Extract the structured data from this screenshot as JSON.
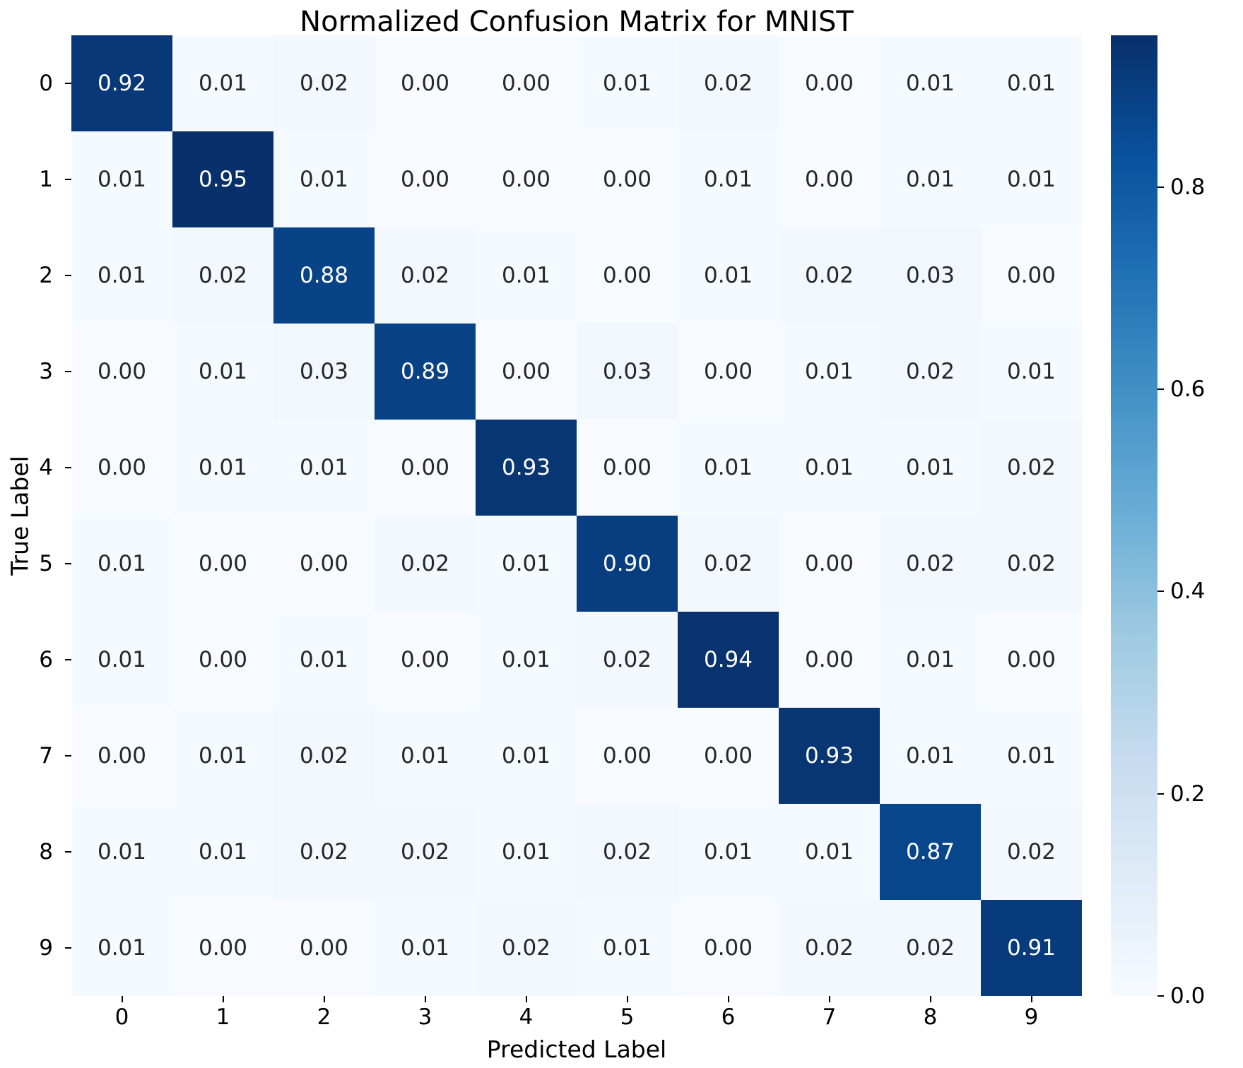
{
  "chart_data": {
    "type": "heatmap",
    "title": "Normalized Confusion Matrix for MNIST",
    "xlabel": "Predicted Label",
    "ylabel": "True Label",
    "x_ticklabels": [
      "0",
      "1",
      "2",
      "3",
      "4",
      "5",
      "6",
      "7",
      "8",
      "9"
    ],
    "y_ticklabels": [
      "0",
      "1",
      "2",
      "3",
      "4",
      "5",
      "6",
      "7",
      "8",
      "9"
    ],
    "matrix": [
      [
        0.92,
        0.01,
        0.02,
        0.0,
        0.0,
        0.01,
        0.02,
        0.0,
        0.01,
        0.01
      ],
      [
        0.01,
        0.95,
        0.01,
        0.0,
        0.0,
        0.0,
        0.01,
        0.0,
        0.01,
        0.01
      ],
      [
        0.01,
        0.02,
        0.88,
        0.02,
        0.01,
        0.0,
        0.01,
        0.02,
        0.03,
        0.0
      ],
      [
        0.0,
        0.01,
        0.03,
        0.89,
        0.0,
        0.03,
        0.0,
        0.01,
        0.02,
        0.01
      ],
      [
        0.0,
        0.01,
        0.01,
        0.0,
        0.93,
        0.0,
        0.01,
        0.01,
        0.01,
        0.02
      ],
      [
        0.01,
        0.0,
        0.0,
        0.02,
        0.01,
        0.9,
        0.02,
        0.0,
        0.02,
        0.02
      ],
      [
        0.01,
        0.0,
        0.01,
        0.0,
        0.01,
        0.02,
        0.94,
        0.0,
        0.01,
        0.0
      ],
      [
        0.0,
        0.01,
        0.02,
        0.01,
        0.01,
        0.0,
        0.0,
        0.93,
        0.01,
        0.01
      ],
      [
        0.01,
        0.01,
        0.02,
        0.02,
        0.01,
        0.02,
        0.01,
        0.01,
        0.87,
        0.02
      ],
      [
        0.01,
        0.0,
        0.0,
        0.01,
        0.02,
        0.01,
        0.0,
        0.02,
        0.02,
        0.91
      ]
    ],
    "value_decimals": 2,
    "colormap": "Blues",
    "vmin": 0.0,
    "vmax": 0.95,
    "colorbar_ticks": [
      "0.0",
      "0.2",
      "0.4",
      "0.6",
      "0.8"
    ],
    "colorbar_position": "right",
    "grid": false,
    "annotations_on": true
  },
  "colors": {
    "background": "#ffffff",
    "cmap_low": "#f7fbff",
    "cmap_high": "#08306b",
    "cell_text_dark": "#262626",
    "cell_text_light": "#ffffff",
    "axis_text": "#000000"
  }
}
